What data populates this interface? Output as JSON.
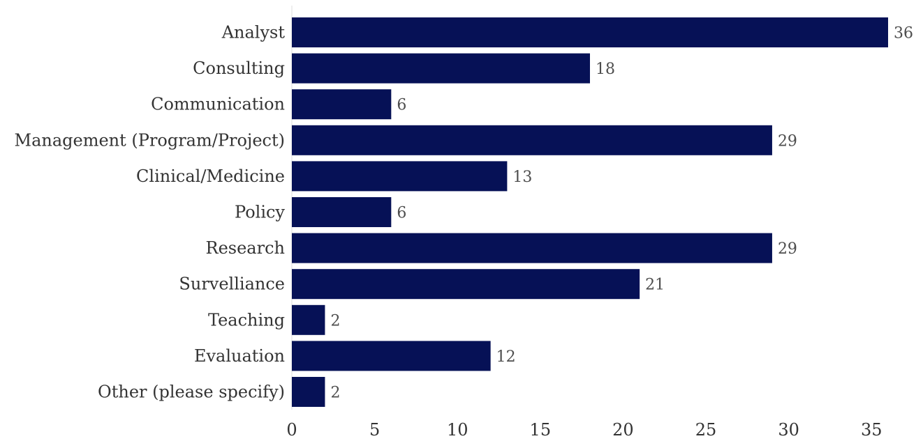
{
  "chart_data": {
    "type": "bar",
    "orientation": "horizontal",
    "categories": [
      "Analyst",
      "Consulting",
      "Communication",
      "Management (Program/Project)",
      "Clinical/Medicine",
      "Policy",
      "Research",
      "Survelliance",
      "Teaching",
      "Evaluation",
      "Other (please specify)"
    ],
    "values": [
      36,
      18,
      6,
      29,
      13,
      6,
      29,
      21,
      2,
      12,
      2
    ],
    "value_labels": [
      "36",
      "18",
      "6",
      "29",
      "13",
      "6",
      "29",
      "21",
      "2",
      "12",
      "2"
    ],
    "x_ticks": [
      "0",
      "5",
      "10",
      "15",
      "20",
      "25",
      "30",
      "35"
    ],
    "xlim": [
      0,
      36
    ],
    "title": "",
    "xlabel": "",
    "ylabel": "",
    "grid": false,
    "legend": "none",
    "bar_color": "#061156",
    "axis_color": "#dddddd"
  }
}
